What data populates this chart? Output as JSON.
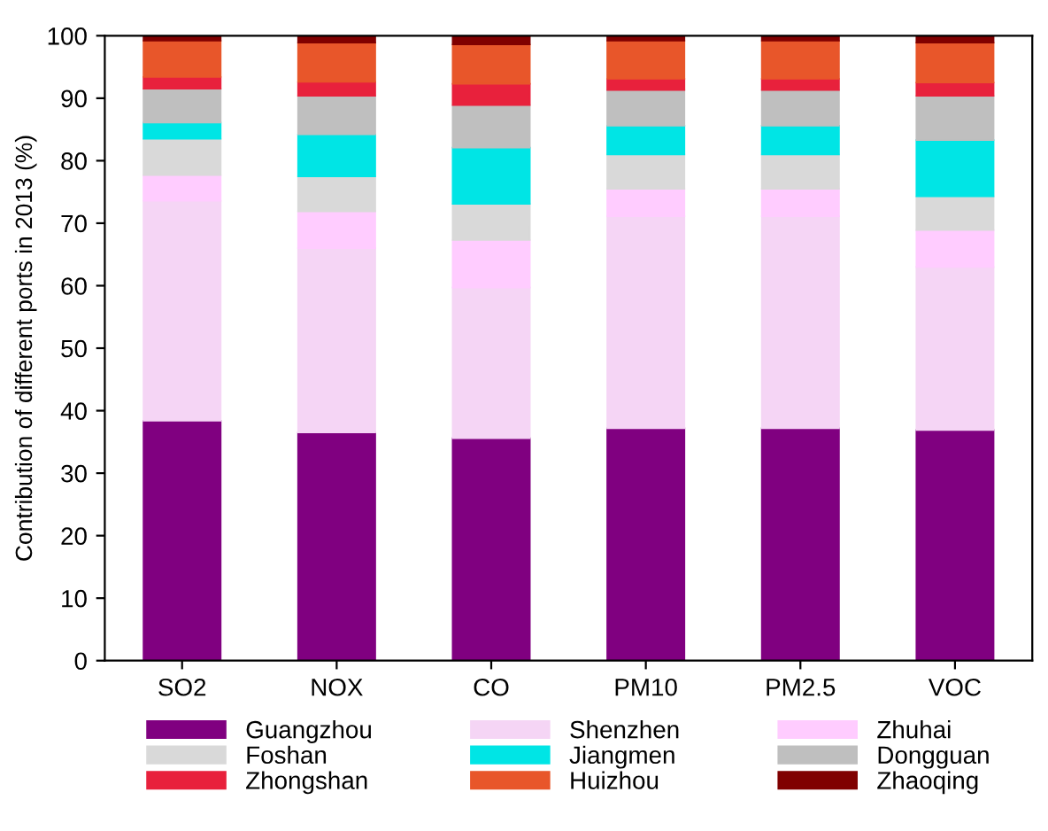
{
  "chart_data": {
    "type": "bar",
    "stacked": true,
    "ylabel": "Contribution of different ports in 2013 (%)",
    "categories": [
      "SO2",
      "NOX",
      "CO",
      "PM10",
      "PM2.5",
      "VOC"
    ],
    "series": [
      {
        "name": "Guangzhou",
        "color": "#800080",
        "values": [
          38.4,
          36.5,
          35.6,
          37.2,
          37.2,
          36.9
        ]
      },
      {
        "name": "Shenzhen",
        "color": "#f5d5f5",
        "values": [
          35.2,
          29.5,
          24.1,
          33.9,
          33.9,
          26.1
        ]
      },
      {
        "name": "Zhuhai",
        "color": "#ffccff",
        "values": [
          4.1,
          5.9,
          7.6,
          4.4,
          4.4,
          5.9
        ]
      },
      {
        "name": "Foshan",
        "color": "#d9d9d9",
        "values": [
          5.8,
          5.6,
          5.8,
          5.5,
          5.5,
          5.4
        ]
      },
      {
        "name": "Jiangmen",
        "color": "#00e5e5",
        "values": [
          2.6,
          6.7,
          9.0,
          4.6,
          4.6,
          9.0
        ]
      },
      {
        "name": "Dongguan",
        "color": "#bfbfbf",
        "values": [
          5.4,
          6.2,
          6.8,
          5.7,
          5.7,
          7.1
        ]
      },
      {
        "name": "Zhongshan",
        "color": "#e8213c",
        "values": [
          1.9,
          2.2,
          3.4,
          1.8,
          1.8,
          2.1
        ]
      },
      {
        "name": "Huizhou",
        "color": "#e8562a",
        "values": [
          5.8,
          6.3,
          6.3,
          6.1,
          6.1,
          6.4
        ]
      },
      {
        "name": "Zhaoqing",
        "color": "#800000",
        "values": [
          0.8,
          1.1,
          1.4,
          0.8,
          0.8,
          1.1
        ]
      }
    ],
    "ylim": [
      0,
      100
    ],
    "yticks": [
      0,
      10,
      20,
      30,
      40,
      50,
      60,
      70,
      80,
      90,
      100
    ],
    "legend": "bottom",
    "grid": false
  }
}
